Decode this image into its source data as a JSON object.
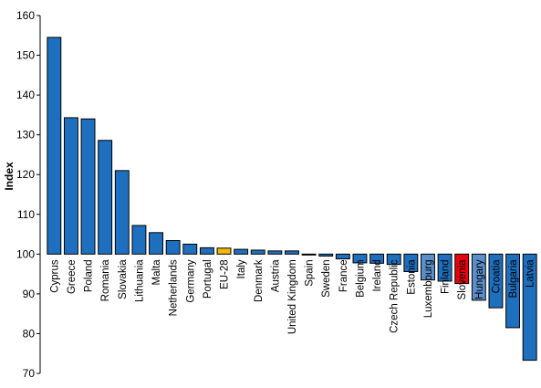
{
  "chart_data": {
    "type": "bar",
    "title": "",
    "xlabel": "",
    "ylabel": "Index",
    "ylim": [
      70,
      160
    ],
    "yticks": [
      70,
      80,
      90,
      100,
      110,
      120,
      130,
      140,
      150,
      160
    ],
    "baseline": 100,
    "grid": false,
    "legend": "none",
    "categories": [
      "Cyprus",
      "Greece",
      "Poland",
      "Romania",
      "Slovakia",
      "Lithuania",
      "Malta",
      "Netherlands",
      "Germany",
      "Portugal",
      "EU-28",
      "Italy",
      "Denmark",
      "Austria",
      "United Kingdom",
      "Spain",
      "Sweden",
      "France",
      "Belgium",
      "Ireland",
      "Czech Republic",
      "Estonia",
      "Luxembourg",
      "Finland",
      "Slovenia",
      "Hungary",
      "Croatia",
      "Bulgaria",
      "Latvia"
    ],
    "values": [
      154.5,
      134.3,
      134.0,
      128.6,
      121.0,
      107.2,
      105.4,
      103.4,
      102.5,
      101.6,
      101.5,
      101.2,
      101.0,
      100.8,
      100.8,
      100.0,
      99.5,
      98.8,
      97.8,
      97.7,
      97.4,
      95.6,
      93.5,
      93.2,
      92.6,
      88.4,
      86.5,
      81.5,
      73.3
    ],
    "colors": {
      "default": "#1F6FBF",
      "eu28": "#F5B800",
      "slovenia": "#E8000E",
      "light": "#5A8FCC"
    },
    "bar_colors": [
      "default",
      "default",
      "default",
      "default",
      "default",
      "default",
      "default",
      "default",
      "default",
      "default",
      "eu28",
      "default",
      "default",
      "default",
      "default",
      "default",
      "default",
      "default",
      "default",
      "default",
      "default",
      "default",
      "light",
      "default",
      "slovenia",
      "light",
      "default",
      "default",
      "default"
    ]
  }
}
